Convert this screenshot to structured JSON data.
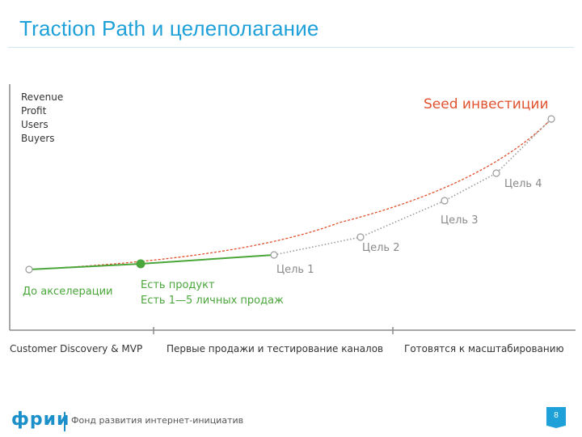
{
  "header": {
    "title": "Traction Path и целеполагание"
  },
  "diagram": {
    "metrics": [
      "Revenue",
      "Profit",
      "Users",
      "Buyers"
    ],
    "curve_label": "Seed инвестиции",
    "points": [
      {
        "label": "До акселерации",
        "state": "start"
      },
      {
        "label_lines": [
          "Есть продукт",
          "Есть 1—5 личных продаж"
        ],
        "state": "current"
      },
      {
        "label": "Цель 1",
        "state": "goal"
      },
      {
        "label": "Цель 2",
        "state": "goal"
      },
      {
        "label": "Цель 3",
        "state": "goal"
      },
      {
        "label": "Цель 4",
        "state": "goal"
      },
      {
        "label": "",
        "state": "target"
      }
    ],
    "stages": [
      "Customer Discovery & MVP",
      "Первые продажи и тестирование каналов",
      "Готовятся к масштабированию"
    ],
    "colors": {
      "seed": "#e0522f",
      "progress": "#4aa63a",
      "plan": "#9a9a9a",
      "axis": "#8a8a8a",
      "title": "#1ea0d8"
    }
  },
  "footer": {
    "logo": "фрии",
    "org": "Фонд развития интернет-инициатив",
    "page": "8"
  }
}
